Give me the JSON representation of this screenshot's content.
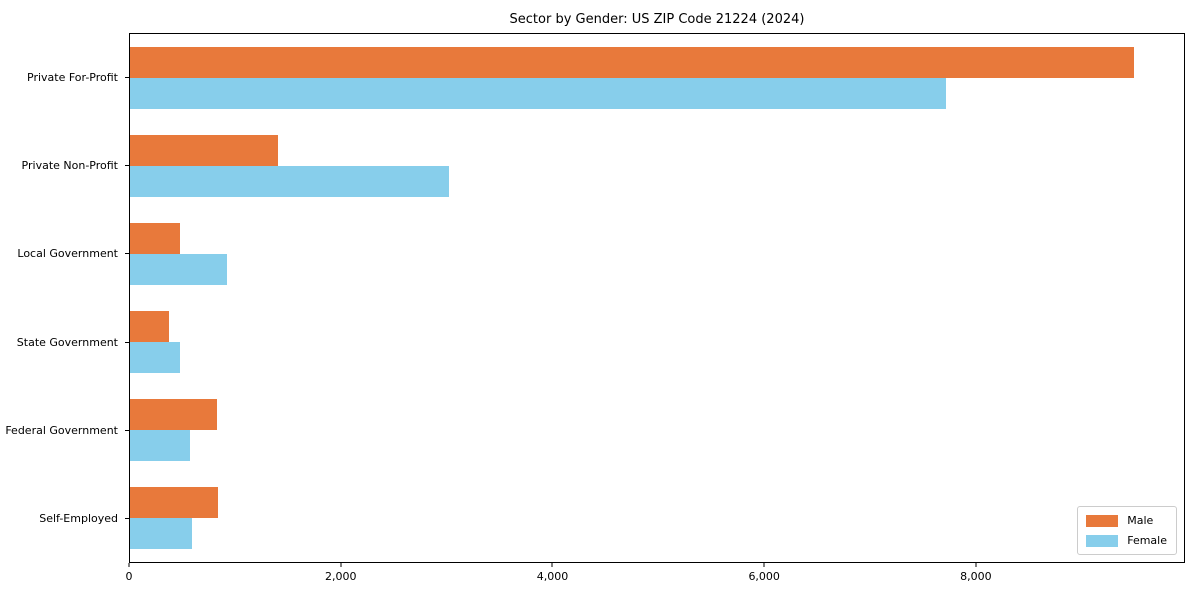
{
  "title": "Sector by Gender: US ZIP Code 21224 (2024)",
  "legend": {
    "entries": [
      {
        "label": "Male",
        "color": "#e8793b"
      },
      {
        "label": "Female",
        "color": "#87ceeb"
      }
    ],
    "position": "lower right"
  },
  "colors": {
    "male": "#e8793b",
    "female": "#87ceeb",
    "axis": "#000000",
    "legend_border": "#cccccc",
    "background": "#ffffff"
  },
  "chart_data": {
    "type": "bar",
    "orientation": "horizontal",
    "title": "Sector by Gender: US ZIP Code 21224 (2024)",
    "categories": [
      "Private For-Profit",
      "Private Non-Profit",
      "Local Government",
      "State Government",
      "Federal Government",
      "Self-Employed"
    ],
    "series": [
      {
        "name": "Male",
        "color": "#e8793b",
        "values": [
          9500,
          1400,
          470,
          370,
          820,
          830
        ]
      },
      {
        "name": "Female",
        "color": "#87ceeb",
        "values": [
          7720,
          3020,
          920,
          470,
          570,
          590
        ]
      }
    ],
    "xlabel": "",
    "ylabel": "",
    "xlim": [
      0,
      9975
    ],
    "xticks": [
      0,
      2000,
      4000,
      6000,
      8000
    ],
    "xtick_labels": [
      "0",
      "2,000",
      "4,000",
      "6,000",
      "8,000"
    ],
    "grid": false,
    "legend_position": "lower right"
  }
}
